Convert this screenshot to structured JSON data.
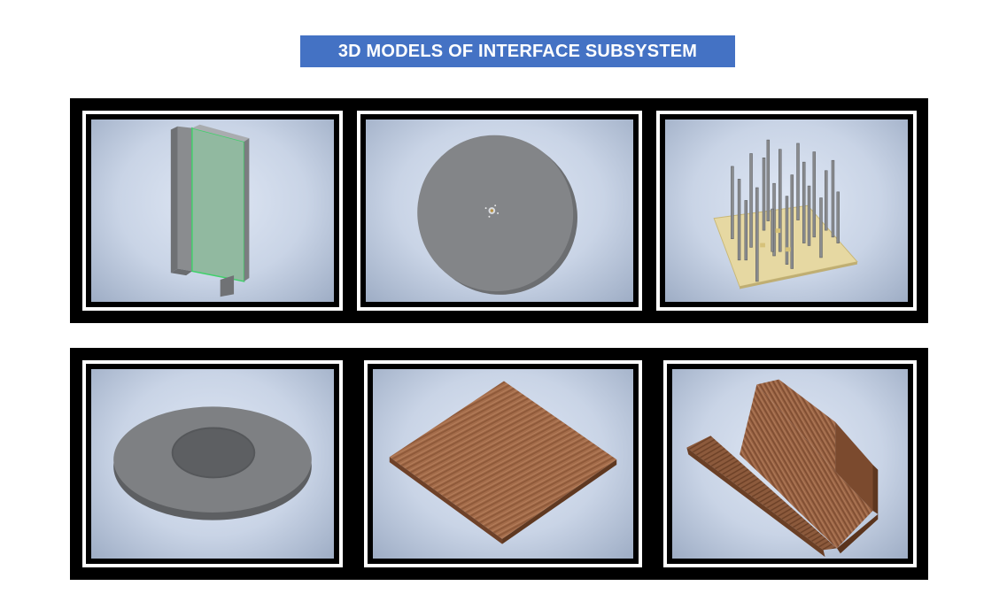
{
  "title": "3D MODELS OF INTERFACE SUBSYSTEM",
  "colors": {
    "banner": "#4472c4",
    "banner_text": "#ffffff",
    "frame": "#000000",
    "viewport_bg": "#d6dfee",
    "metal": "#7d7f82",
    "wood": "#9a6444",
    "board": "#e3d49c",
    "highlight": "#3fd16a"
  },
  "models": [
    {
      "icon": "i-beam-icon"
    },
    {
      "icon": "disc-plate-icon"
    },
    {
      "icon": "pin-array-board-icon"
    },
    {
      "icon": "washer-ring-icon"
    },
    {
      "icon": "wood-plate-icon"
    },
    {
      "icon": "wood-bracket-icon"
    }
  ]
}
